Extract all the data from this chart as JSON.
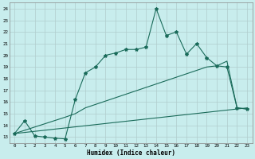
{
  "xlabel": "Humidex (Indice chaleur)",
  "bg_color": "#c8eded",
  "grid_color": "#b0cccc",
  "line_color": "#1a6b5a",
  "x_min": 0,
  "x_max": 23,
  "y_min": 12.5,
  "y_max": 24.5,
  "line1_x": [
    0,
    1,
    2,
    3,
    4,
    5,
    6,
    7,
    8,
    9,
    10,
    11,
    12,
    13,
    14,
    15,
    16,
    17,
    18,
    19,
    20,
    21,
    22,
    23
  ],
  "line1_y": [
    13.3,
    14.4,
    13.1,
    13.0,
    12.9,
    12.85,
    16.2,
    18.5,
    19.0,
    20.0,
    20.2,
    20.5,
    20.5,
    20.7,
    24.0,
    21.7,
    22.0,
    20.1,
    21.0,
    19.8,
    19.1,
    19.0,
    15.5,
    15.4
  ],
  "line2_x": [
    0,
    5,
    6,
    7,
    19,
    20,
    21,
    22,
    23
  ],
  "line2_y": [
    13.3,
    14.7,
    15.0,
    15.5,
    19.0,
    19.1,
    19.5,
    15.5,
    15.4
  ],
  "line3_x": [
    0,
    23
  ],
  "line3_y": [
    13.3,
    15.5
  ],
  "yticks": [
    13,
    14,
    15,
    16,
    17,
    18,
    19,
    20,
    21,
    22,
    23,
    24
  ],
  "xticks": [
    0,
    1,
    2,
    3,
    4,
    5,
    6,
    7,
    8,
    9,
    10,
    11,
    12,
    13,
    14,
    15,
    16,
    17,
    18,
    19,
    20,
    21,
    22,
    23
  ]
}
